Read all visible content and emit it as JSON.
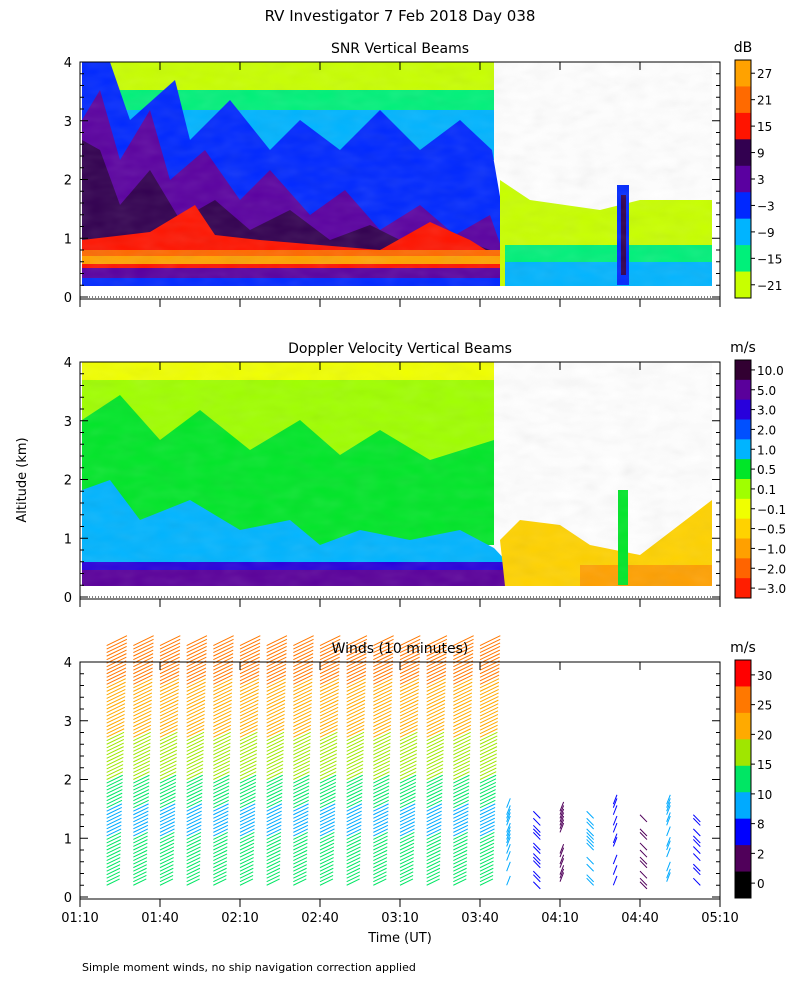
{
  "figure_title": "RV Investigator   7 Feb 2018 Day 038",
  "footnote": "Simple moment winds, no ship navigation correction applied",
  "shared_ylabel": "Altitude (km)",
  "chart_data": [
    {
      "type": "heatmap",
      "title": "SNR Vertical Beams",
      "ylabel": "",
      "yticks": [
        "0",
        "1",
        "2",
        "3",
        "4"
      ],
      "ylim": [
        0,
        4
      ],
      "xlim": [
        "01:10",
        "05:10"
      ],
      "colorbar_unit": "dB",
      "colorbar_labels": [
        "27",
        "21",
        "15",
        "9",
        "3",
        "−3",
        "−9",
        "−15",
        "−21"
      ],
      "colorbar_colors": [
        "#ffa200",
        "#ff6a00",
        "#ff1400",
        "#320050",
        "#5a00a0",
        "#0028ff",
        "#00b4ff",
        "#00f07a",
        "#c8ff00"
      ],
      "description_fields": {
        "data_end_time": "03:50",
        "low_level_band_altitude_km": [
          0.3,
          1.0
        ],
        "sparse_after": "03:50"
      }
    },
    {
      "type": "heatmap",
      "title": "Doppler Velocity Vertical Beams",
      "ylabel": "",
      "yticks": [
        "0",
        "1",
        "2",
        "3",
        "4"
      ],
      "ylim": [
        0,
        4
      ],
      "xlim": [
        "01:10",
        "05:10"
      ],
      "colorbar_unit": "m/s",
      "colorbar_labels": [
        "10.0",
        "5.0",
        "3.0",
        "2.0",
        "1.0",
        "0.5",
        "0.1",
        "−0.1",
        "−0.5",
        "−1.0",
        "−2.0",
        "−3.0"
      ],
      "colorbar_colors": [
        "#320032",
        "#5a009b",
        "#2800dc",
        "#0050ff",
        "#00b4ff",
        "#00e628",
        "#a0ff00",
        "#f0ff00",
        "#ffd200",
        "#ffa000",
        "#ff6400",
        "#ff1e00"
      ]
    },
    {
      "type": "scatter",
      "title": "Winds (10 minutes)",
      "ylabel": "",
      "xlabel": "Time (UT)",
      "yticks": [
        "0",
        "1",
        "2",
        "3",
        "4"
      ],
      "ylim": [
        0,
        4
      ],
      "xlim": [
        "01:10",
        "05:10"
      ],
      "xticks": [
        "01:10",
        "01:40",
        "02:10",
        "02:40",
        "03:10",
        "03:40",
        "04:10",
        "04:40",
        "05:10"
      ],
      "colorbar_unit": "m/s",
      "colorbar_labels": [
        "30",
        "25",
        "20",
        "15",
        "10",
        "8",
        "2",
        "0"
      ],
      "colorbar_colors": [
        "#ff0000",
        "#ff7800",
        "#ffaa00",
        "#a0e600",
        "#00e664",
        "#00aaff",
        "#0000ff",
        "#50005a",
        "#000000"
      ],
      "profile_times": [
        "01:20",
        "01:30",
        "01:40",
        "01:50",
        "02:00",
        "02:10",
        "02:20",
        "02:30",
        "02:40",
        "02:50",
        "03:00",
        "03:10",
        "03:20",
        "03:30",
        "03:40",
        "03:50",
        "04:00",
        "04:10",
        "04:20",
        "04:30",
        "04:40",
        "04:50",
        "05:00"
      ],
      "full_profiles_until": "03:40"
    }
  ]
}
